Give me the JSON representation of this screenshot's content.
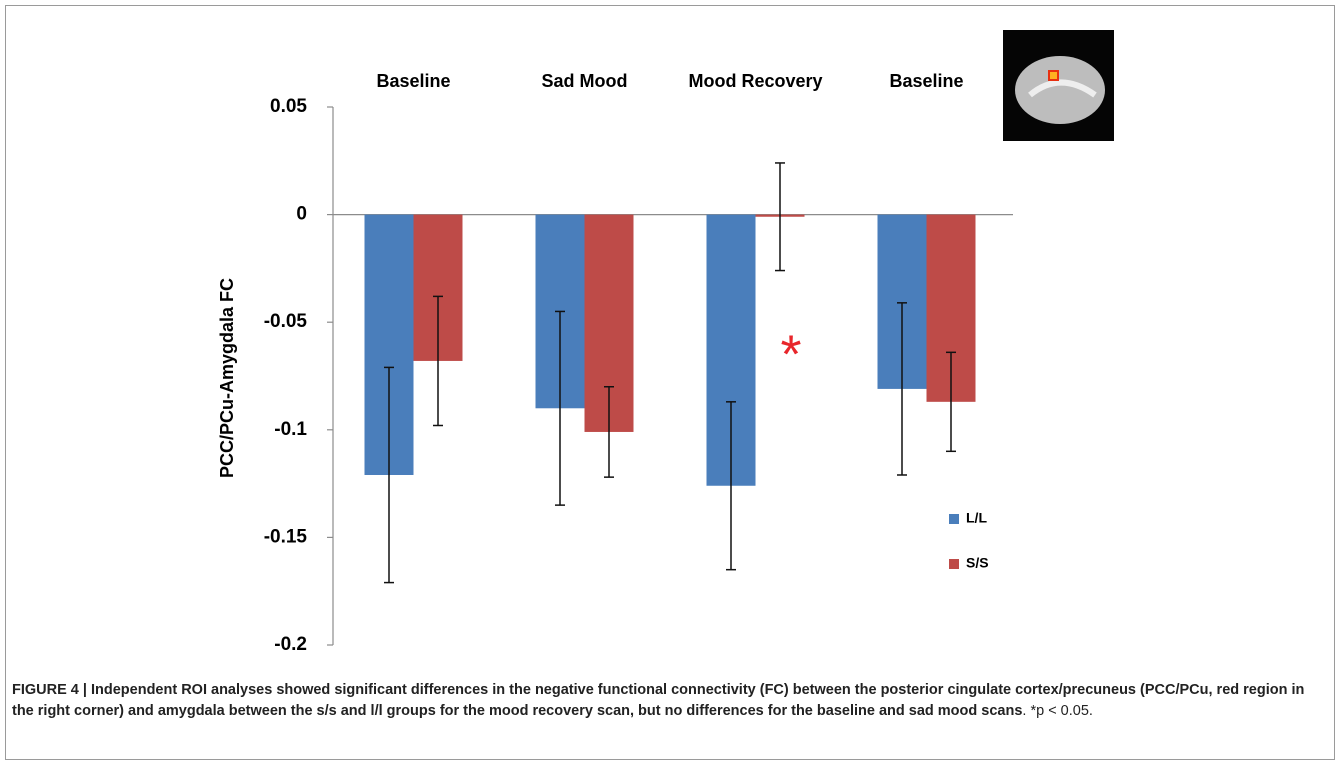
{
  "chart_data": {
    "type": "bar",
    "categories": [
      "Baseline",
      "Sad Mood",
      "Mood Recovery",
      "Baseline"
    ],
    "y_label": "PCC/PCu-Amygdala FC",
    "ylim": [
      -0.2,
      0.05
    ],
    "yticks": [
      0.05,
      0,
      -0.05,
      -0.1,
      -0.15,
      -0.2
    ],
    "series": [
      {
        "name": "L/L",
        "color": "#4a7ebb",
        "values": [
          -0.121,
          -0.09,
          -0.126,
          -0.081
        ],
        "errors": [
          0.05,
          0.045,
          0.039,
          0.04
        ]
      },
      {
        "name": "S/S",
        "color": "#be4b48",
        "values": [
          -0.068,
          -0.101,
          -0.001,
          -0.087
        ],
        "errors": [
          0.03,
          0.021,
          0.025,
          0.023
        ]
      }
    ],
    "annotation": "*",
    "annotation_color": "#e8262b",
    "legend": "right"
  },
  "caption": {
    "label": "FIGURE 4 | Independent ROI analyses showed significant differences in the negative functional connectivity (FC) between the posterior cingulate cortex/precuneus (PCC/PCu, red region in the right corner) and amygdala between the s/s and l/l groups for the mood recovery scan, but no differences for the baseline and sad mood scans",
    "note": "*p < 0.05."
  }
}
